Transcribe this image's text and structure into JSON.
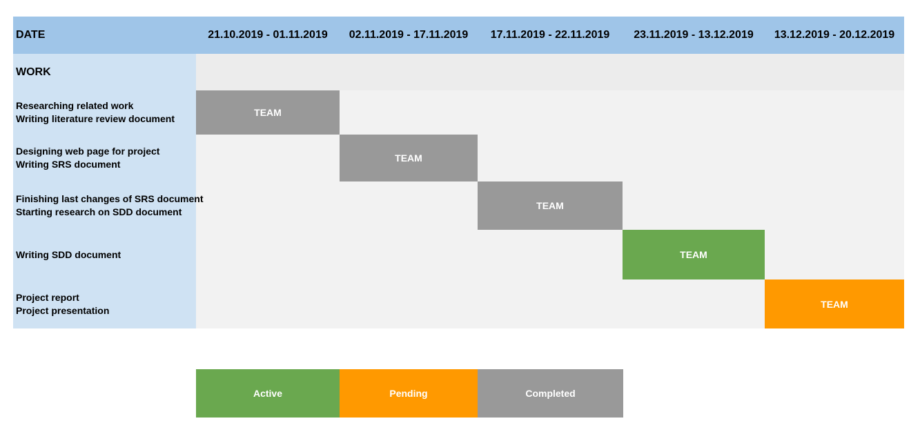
{
  "header": {
    "date_label": "DATE",
    "periods": [
      "21.10.2019 - 01.11.2019",
      "02.11.2019 - 17.11.2019",
      "17.11.2019 - 22.11.2019",
      "23.11.2019 - 13.12.2019",
      "13.12.2019 - 20.12.2019"
    ]
  },
  "work_label": "WORK",
  "tasks": [
    {
      "lines": [
        "Researching related work",
        "Writing literature review document"
      ],
      "assignee": "TEAM",
      "period_index": 0,
      "status": "Completed"
    },
    {
      "lines": [
        "Designing web page for project",
        "Writing SRS document"
      ],
      "assignee": "TEAM",
      "period_index": 1,
      "status": "Completed"
    },
    {
      "lines": [
        "Finishing last changes of SRS document",
        "Starting research on SDD document"
      ],
      "assignee": "TEAM",
      "period_index": 2,
      "status": "Completed"
    },
    {
      "lines": [
        "Writing SDD document"
      ],
      "assignee": "TEAM",
      "period_index": 3,
      "status": "Active"
    },
    {
      "lines": [
        "Project report",
        "Project presentation"
      ],
      "assignee": "TEAM",
      "period_index": 4,
      "status": "Pending"
    }
  ],
  "legend": [
    {
      "label": "Active",
      "color": "#6aa84f"
    },
    {
      "label": "Pending",
      "color": "#ff9900"
    },
    {
      "label": "Completed",
      "color": "#999999"
    }
  ],
  "colors": {
    "header": "#9fc5e8",
    "work_column": "#cfe2f3",
    "grid": "#f2f2f2",
    "active": "#6aa84f",
    "pending": "#ff9900",
    "completed": "#999999"
  }
}
